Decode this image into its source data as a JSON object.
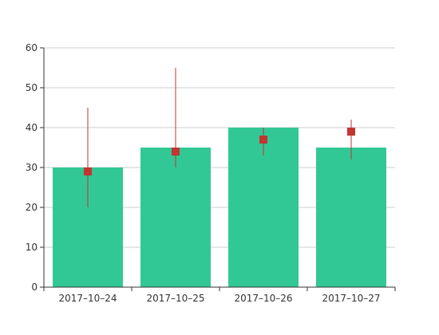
{
  "chart_data": {
    "type": "bar",
    "categories": [
      "2017–10–24",
      "2017–10–25",
      "2017–10–26",
      "2017–10–27"
    ],
    "values": [
      30,
      35,
      40,
      35
    ],
    "markers": [
      {
        "value": 29,
        "low": 20,
        "high": 45
      },
      {
        "value": 34,
        "low": 30,
        "high": 55
      },
      {
        "value": 37,
        "low": 33,
        "high": 40
      },
      {
        "value": 39,
        "low": 32,
        "high": 42
      }
    ],
    "ylim": [
      0,
      60
    ],
    "yticks": [
      0,
      10,
      20,
      30,
      40,
      50,
      60
    ],
    "grid": true,
    "legend": "none",
    "title": "",
    "xlabel": "",
    "ylabel": "",
    "colors": {
      "bar": "#32c896",
      "marker": "#c23531",
      "grid": "#cccccc",
      "axis": "#333333"
    }
  }
}
